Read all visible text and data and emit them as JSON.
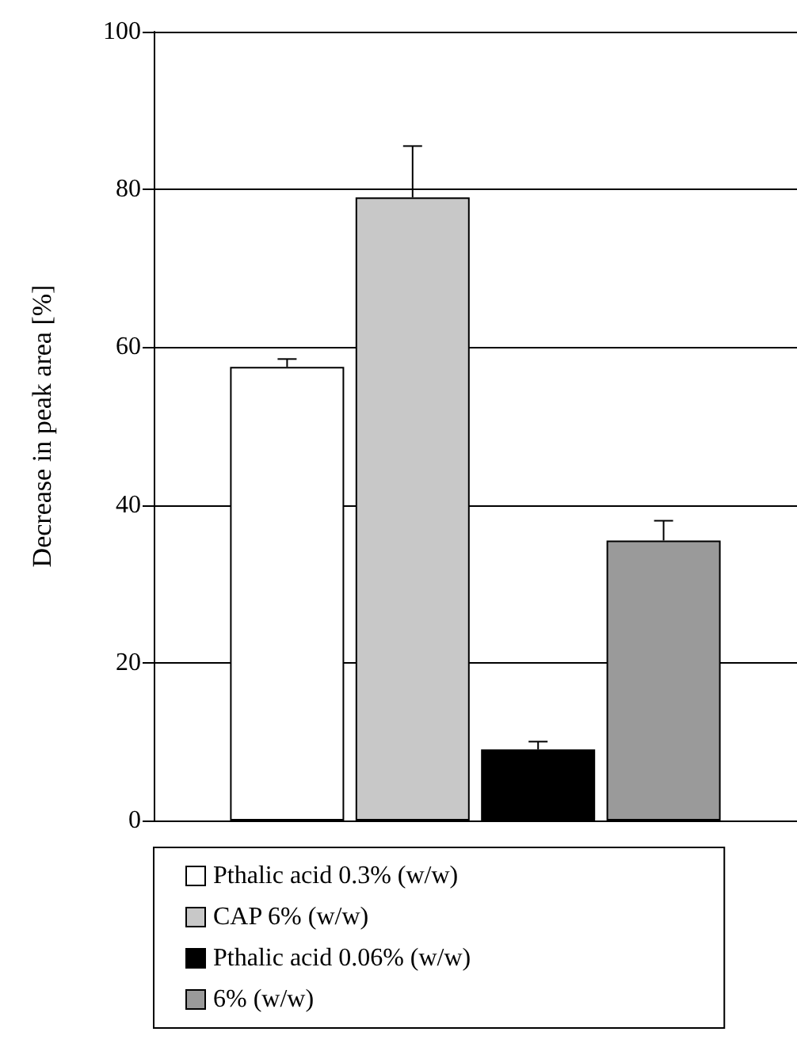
{
  "chart_data": {
    "type": "bar",
    "ylabel": "Decrease in peak area [%]",
    "categories": [
      null
    ],
    "series": [
      {
        "name": "Pthalic acid 0.3% (w/w)",
        "color": "#ffffff",
        "values": [
          57.5
        ],
        "errors": [
          [
            57.5,
            58.5
          ]
        ]
      },
      {
        "name": "CAP 6% (w/w)",
        "color": "#c8c8c8",
        "values": [
          79
        ],
        "errors": [
          [
            79,
            85.5
          ]
        ]
      },
      {
        "name": "Pthalic acid 0.06% (w/w)",
        "color": "#000000",
        "values": [
          9
        ],
        "errors": [
          [
            9,
            10
          ]
        ]
      },
      {
        "name": "6% (w/w)",
        "color": "#9a9a9a",
        "values": [
          35.5
        ],
        "errors": [
          [
            35.5,
            38
          ]
        ]
      }
    ],
    "ylim": [
      0,
      100
    ],
    "yticks": [
      0,
      20,
      40,
      60,
      80,
      100
    ],
    "grid": "y",
    "legend": "bottom"
  }
}
